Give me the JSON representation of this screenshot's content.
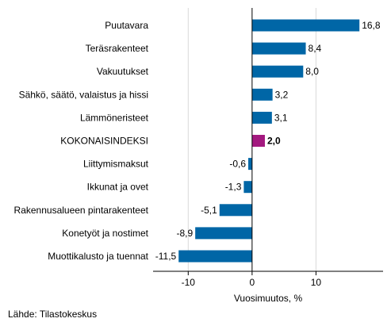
{
  "chart_data": {
    "type": "bar",
    "orientation": "horizontal",
    "categories": [
      "Puutavara",
      "Teräsrakenteet",
      "Vakuutukset",
      "Sähkö, säätö, valaistus ja hissi",
      "Lämmöneristeet",
      "KOKONAISINDEKSI",
      "Liittymismaksut",
      "Ikkunat ja ovet",
      "Rakennusalueen pintarakenteet",
      "Konetyöt ja nostimet",
      "Muottikalusto ja tuennat"
    ],
    "values": [
      16.8,
      8.4,
      8.0,
      3.2,
      3.1,
      2.0,
      -0.6,
      -1.3,
      -5.1,
      -8.9,
      -11.5
    ],
    "value_labels": [
      "16,8",
      "8,4",
      "8,0",
      "3,2",
      "3,1",
      "2,0",
      "-0,6",
      "-1,3",
      "-5,1",
      "-8,9",
      "-11,5"
    ],
    "highlight_index": 5,
    "xlabel": "Vuosimuutos, %",
    "xlim": [
      -15.5,
      20.5
    ],
    "xticks": [
      -10,
      0,
      10
    ],
    "xtick_labels": [
      "-10",
      "0",
      "10"
    ],
    "grid": true,
    "colors": {
      "bar": "#0066a6",
      "highlight": "#a3197f",
      "grid": "#d9d9d9",
      "axis": "#000000"
    }
  },
  "source": "Lähde: Tilastokeskus"
}
